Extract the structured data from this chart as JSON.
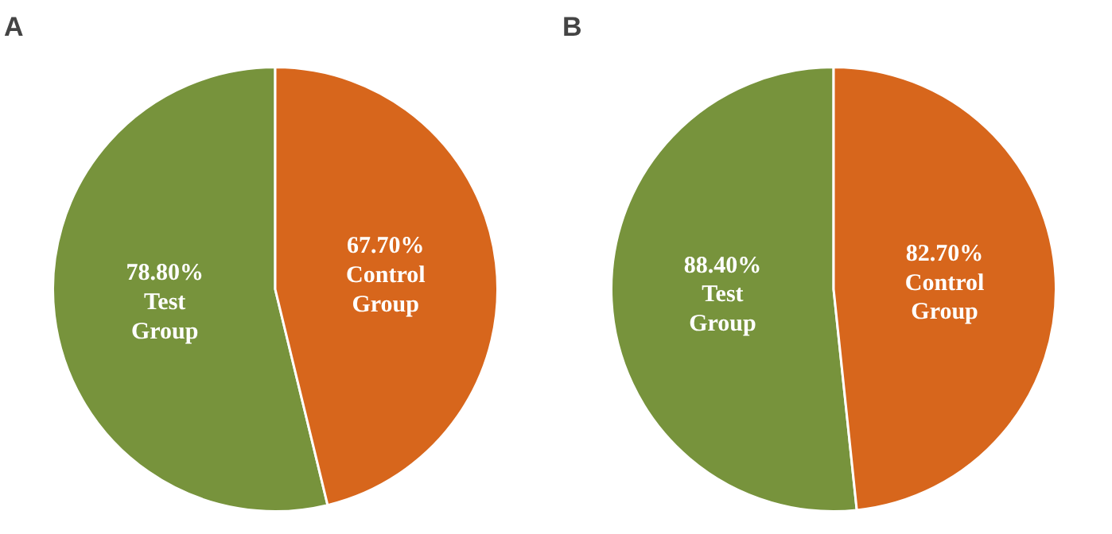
{
  "chart_data": [
    {
      "type": "pie",
      "title": "A",
      "categories": [
        "Test Group",
        "Control Group"
      ],
      "values": [
        78.8,
        67.7
      ],
      "value_labels": [
        "78.80%",
        "67.70%"
      ],
      "colors": [
        "#77933c",
        "#d7661c"
      ],
      "legend": false
    },
    {
      "type": "pie",
      "title": "B",
      "categories": [
        "Test Group",
        "Control Group"
      ],
      "values": [
        88.4,
        82.7
      ],
      "value_labels": [
        "88.40%",
        "82.70%"
      ],
      "colors": [
        "#77933c",
        "#d7661c"
      ],
      "legend": false
    }
  ]
}
